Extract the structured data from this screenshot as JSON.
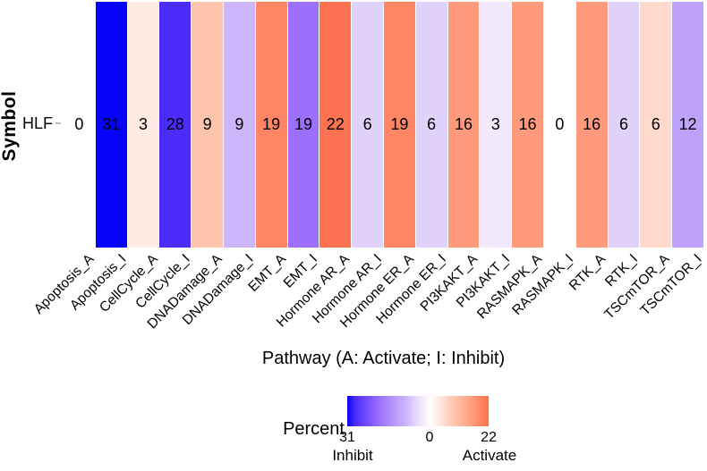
{
  "chart_data": {
    "type": "heatmap",
    "title": "",
    "ylabel": "Symbol",
    "xlabel": "Pathway (A: Activate; I: Inhibit)",
    "row_label": "HLF",
    "categories": [
      "Apoptosis_A",
      "Apoptosis_I",
      "CellCycle_A",
      "CellCycle_I",
      "DNADamage_A",
      "DNADamage_I",
      "EMT_A",
      "EMT_I",
      "Hormone AR_A",
      "Hormone AR_I",
      "Hormone ER_A",
      "Hormone ER_I",
      "PI3KAKT_A",
      "PI3KAKT_I",
      "RASMAPK_A",
      "RASMAPK_I",
      "RTK_A",
      "RTK_I",
      "TSCmTOR_A",
      "TSCmTOR_I"
    ],
    "values": [
      0,
      31,
      3,
      28,
      9,
      9,
      19,
      19,
      22,
      6,
      19,
      6,
      16,
      3,
      16,
      0,
      16,
      6,
      6,
      12
    ],
    "columns": [
      {
        "pathway": "Apoptosis_A",
        "value": 0,
        "color": "#FFFFFF"
      },
      {
        "pathway": "Apoptosis_I",
        "value": 31,
        "color": "#0602FB"
      },
      {
        "pathway": "CellCycle_A",
        "value": 3,
        "color": "#FFEBE3"
      },
      {
        "pathway": "CellCycle_I",
        "value": 28,
        "color": "#4C2CFA"
      },
      {
        "pathway": "DNADamage_A",
        "value": 9,
        "color": "#FFC4AC"
      },
      {
        "pathway": "DNADamage_I",
        "value": 9,
        "color": "#CDB5FC"
      },
      {
        "pathway": "EMT_A",
        "value": 19,
        "color": "#FF8564"
      },
      {
        "pathway": "EMT_I",
        "value": 19,
        "color": "#9C70FC"
      },
      {
        "pathway": "Hormone AR_A",
        "value": 22,
        "color": "#FF7251"
      },
      {
        "pathway": "Hormone AR_I",
        "value": 6,
        "color": "#E0D2FB"
      },
      {
        "pathway": "Hormone ER_A",
        "value": 19,
        "color": "#FF8564"
      },
      {
        "pathway": "Hormone ER_I",
        "value": 6,
        "color": "#E0D2FB"
      },
      {
        "pathway": "PI3KAKT_A",
        "value": 16,
        "color": "#FF9B7C"
      },
      {
        "pathway": "PI3KAKT_I",
        "value": 3,
        "color": "#F2E9FC"
      },
      {
        "pathway": "RASMAPK_A",
        "value": 16,
        "color": "#FF9B7C"
      },
      {
        "pathway": "RASMAPK_I",
        "value": 0,
        "color": "#FFFFFF"
      },
      {
        "pathway": "RTK_A",
        "value": 16,
        "color": "#FF9B7C"
      },
      {
        "pathway": "RTK_I",
        "value": 6,
        "color": "#E0D2FB"
      },
      {
        "pathway": "TSCmTOR_A",
        "value": 6,
        "color": "#FFD9CB"
      },
      {
        "pathway": "TSCmTOR_I",
        "value": 12,
        "color": "#BFA2FB"
      }
    ],
    "legend": {
      "title": "Percent",
      "min_label": "31",
      "min_sub": "Inhibit",
      "mid_label": "0",
      "max_label": "22",
      "max_sub": "Activate",
      "inhibit_max": 31,
      "activate_max": 22,
      "gradient": [
        {
          "pos": 0,
          "color": "#0602FB"
        },
        {
          "pos": 0.057,
          "color": "#4C2CFA"
        },
        {
          "pos": 0.226,
          "color": "#9C70FC"
        },
        {
          "pos": 0.358,
          "color": "#BFA2FB"
        },
        {
          "pos": 0.415,
          "color": "#CDB5FC"
        },
        {
          "pos": 0.472,
          "color": "#E0D2FB"
        },
        {
          "pos": 0.528,
          "color": "#F2E9FC"
        },
        {
          "pos": 0.585,
          "color": "#FFFFFF"
        },
        {
          "pos": 0.642,
          "color": "#FFEBE3"
        },
        {
          "pos": 0.698,
          "color": "#FFD9CB"
        },
        {
          "pos": 0.755,
          "color": "#FFC4AC"
        },
        {
          "pos": 0.887,
          "color": "#FF9B7C"
        },
        {
          "pos": 0.943,
          "color": "#FF8564"
        },
        {
          "pos": 1,
          "color": "#FF7251"
        }
      ]
    },
    "colors": {
      "inhibit_max_color": "#0602FB",
      "activate_max_color": "#FF7251",
      "zero_color": "#FFFFFF",
      "text_color": "#000000"
    },
    "layout": {
      "grid": false,
      "legend_position": "bottom",
      "x_label_angle": 45
    }
  }
}
